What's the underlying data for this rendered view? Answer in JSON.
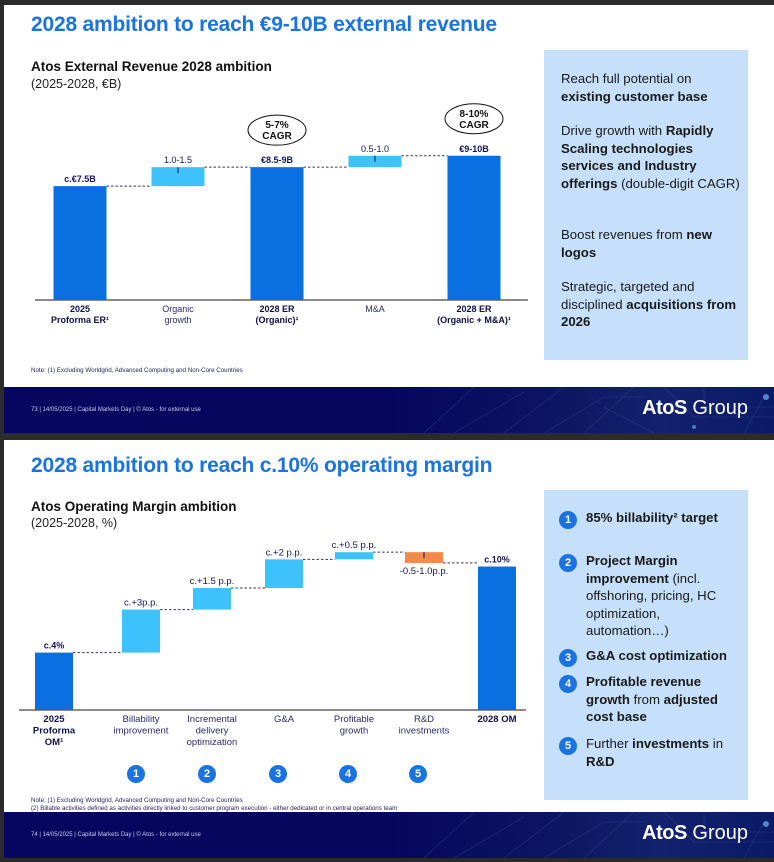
{
  "slide1": {
    "title": "2028 ambition to reach €9-10B external revenue",
    "chart_title": "Atos External Revenue 2028 ambition",
    "chart_subtitle": "(2025-2028, €B)",
    "side_box": [
      {
        "pre": "Reach full potential on ",
        "bold": "existing customer base",
        "post": ""
      },
      {
        "pre": "Drive growth with ",
        "bold": "Rapidly Scaling technologies services and Industry offerings",
        "post": " (double-digit CAGR)"
      },
      {
        "pre": "Boost revenues from ",
        "bold": "new logos",
        "post": ""
      },
      {
        "pre": "Strategic, targeted and disciplined ",
        "bold": "acquisitions from 2026",
        "post": ""
      }
    ],
    "note": "Note: (1) Excluding Worldgrid, Advanced Computing and Non-Core Countries",
    "footer": "73  |  14/05/2025 | Capital Markets Day | © Atos - for external use",
    "logo_bold": "AtoS",
    "logo_light": " Group"
  },
  "slide2": {
    "title": "2028 ambition to reach c.10% operating margin",
    "chart_title": "Atos Operating Margin ambition",
    "chart_subtitle": "(2025-2028, %)",
    "side_box": [
      {
        "num": "1",
        "pre": "",
        "bold": "85% billability² target",
        "mid": "",
        "bold2": "",
        "post": ""
      },
      {
        "num": "2",
        "pre": "",
        "bold": "Project Margin improvement",
        "mid": " (incl. offshoring,  pricing, HC optimization, automation…)",
        "bold2": "",
        "post": ""
      },
      {
        "num": "3",
        "pre": "",
        "bold": "G&A cost optimization",
        "mid": "",
        "bold2": "",
        "post": ""
      },
      {
        "num": "4",
        "pre": "",
        "bold": "Profitable revenue growth",
        "mid": " from ",
        "bold2": "adjusted cost base",
        "post": ""
      },
      {
        "num": "5",
        "pre": "Further ",
        "bold": "investments",
        "mid": " in ",
        "bold2": "R&D",
        "post": ""
      }
    ],
    "note_lines": [
      "Note: (1) Excluding Worldgrid, Advanced Computing and Non-Core Countries",
      "(2) Billable activities defined as activities directly linked to customer program execution - either dedicated or in central operations team"
    ],
    "footer": "74  |  14/05/2025 | Capital Markets Day | © Atos - for external use",
    "logo_bold": "AtoS",
    "logo_light": " Group",
    "lever_numbers": [
      "1",
      "2",
      "3",
      "4",
      "5"
    ]
  },
  "colors": {
    "title_blue": "#1a73e0",
    "total_bar": "#0a6fe0",
    "increase_bar": "#3ec2fb",
    "decrease_bar": "#f28a4b",
    "side_box": "#c6dffa",
    "footer_navy": "#06065e",
    "label_navy": "#14145a"
  },
  "chart_data": [
    {
      "type": "bar",
      "subtype": "waterfall",
      "title": "Atos External Revenue 2028 ambition",
      "subtitle": "(2025-2028, €B)",
      "categories": [
        "2025 Proforma ER¹",
        "Organic growth",
        "2028 ER (Organic)¹",
        "M&A",
        "2028 ER (Organic + M&A)¹"
      ],
      "bar_kinds": [
        "total",
        "increase",
        "total",
        "increase",
        "total"
      ],
      "values": [
        7.5,
        1.25,
        8.75,
        0.75,
        9.5
      ],
      "data_labels": [
        "c.€7.5B",
        "1.0-1.5",
        "€8.5-9B",
        "0.5-1.0",
        "€9-10B"
      ],
      "annotations": [
        {
          "category": "2028 ER (Organic)¹",
          "text": "5-7% CAGR"
        },
        {
          "category": "2028 ER (Organic + M&A)¹",
          "text": "8-10% CAGR"
        }
      ],
      "xlabel": "",
      "ylabel": "",
      "ylim": [
        0,
        11
      ],
      "grid": false,
      "legend": "none"
    },
    {
      "type": "bar",
      "subtype": "waterfall",
      "title": "Atos Operating Margin ambition",
      "subtitle": "(2025-2028, %)",
      "categories": [
        "2025 Proforma OM¹",
        "Billability improvement",
        "Incremental delivery optimization",
        "G&A",
        "Profitable growth",
        "R&D investments",
        "2028 OM"
      ],
      "bar_kinds": [
        "total",
        "increase",
        "increase",
        "increase",
        "increase",
        "decrease",
        "total"
      ],
      "values": [
        4,
        3,
        1.5,
        2,
        0.5,
        -0.75,
        10
      ],
      "data_labels": [
        "c.4%",
        "c.+3p.p.",
        "c.+1.5 p.p.",
        "c.+2 p.p.",
        "c.+0.5 p.p.",
        "-0.5-1.0p.p.",
        "c.10%"
      ],
      "lever_numbers": [
        null,
        "1",
        "2",
        "3",
        "4",
        "5",
        null
      ],
      "xlabel": "",
      "ylabel": "",
      "ylim": [
        0,
        11.5
      ],
      "grid": false,
      "legend": "none"
    }
  ]
}
